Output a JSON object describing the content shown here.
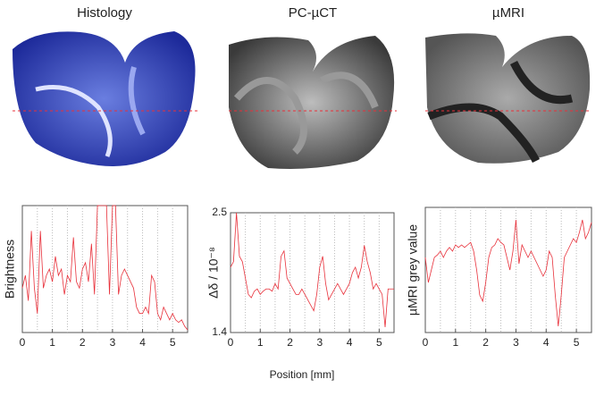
{
  "xlabel": "Position [mm]",
  "chart_data": [
    {
      "type": "line",
      "title": "Histology",
      "ylabel": "Brightness",
      "color": "#e8303a",
      "xlim": [
        0,
        5.5
      ],
      "xticks": [
        0,
        1,
        2,
        3,
        4,
        5
      ],
      "xgrid": [
        0.5,
        1,
        1.5,
        2,
        2.5,
        3,
        3.5,
        4,
        4.5,
        5
      ],
      "ylim": [
        0,
        1
      ],
      "x": [
        0,
        0.1,
        0.2,
        0.3,
        0.4,
        0.5,
        0.6,
        0.7,
        0.8,
        0.9,
        1,
        1.1,
        1.2,
        1.3,
        1.4,
        1.5,
        1.6,
        1.7,
        1.8,
        1.9,
        2,
        2.1,
        2.2,
        2.3,
        2.4,
        2.5,
        2.6,
        2.7,
        2.8,
        2.9,
        3,
        3.1,
        3.2,
        3.3,
        3.4,
        3.5,
        3.6,
        3.7,
        3.8,
        3.9,
        4,
        4.1,
        4.2,
        4.3,
        4.4,
        4.5,
        4.6,
        4.7,
        4.8,
        4.9,
        5,
        5.1,
        5.2,
        5.3,
        5.4,
        5.5
      ],
      "values": [
        0.35,
        0.45,
        0.25,
        0.8,
        0.35,
        0.15,
        0.8,
        0.35,
        0.45,
        0.5,
        0.4,
        0.6,
        0.45,
        0.5,
        0.3,
        0.45,
        0.4,
        0.75,
        0.4,
        0.35,
        0.5,
        0.55,
        0.4,
        0.7,
        0.3,
        1,
        1,
        1,
        1,
        0.3,
        1,
        1,
        0.3,
        0.45,
        0.5,
        0.45,
        0.4,
        0.35,
        0.2,
        0.15,
        0.15,
        0.2,
        0.15,
        0.45,
        0.4,
        0.15,
        0.1,
        0.2,
        0.15,
        0.1,
        0.15,
        0.1,
        0.08,
        0.1,
        0.05,
        0.02
      ]
    },
    {
      "type": "line",
      "title": "PC-µCT",
      "ylabel": "Δδ / 10⁻⁸",
      "color": "#e8303a",
      "xlim": [
        0,
        5.5
      ],
      "xticks": [
        0,
        1,
        2,
        3,
        4,
        5
      ],
      "xgrid": [
        0.5,
        1,
        1.5,
        2,
        2.5,
        3,
        3.5,
        4,
        4.5,
        5
      ],
      "ylim": [
        1.4,
        2.5
      ],
      "yticks": [
        1.4,
        2.5
      ],
      "x": [
        0,
        0.1,
        0.2,
        0.3,
        0.4,
        0.5,
        0.6,
        0.7,
        0.8,
        0.9,
        1,
        1.1,
        1.2,
        1.3,
        1.4,
        1.5,
        1.6,
        1.7,
        1.8,
        1.9,
        2,
        2.1,
        2.2,
        2.3,
        2.4,
        2.5,
        2.6,
        2.7,
        2.8,
        2.9,
        3,
        3.1,
        3.2,
        3.3,
        3.4,
        3.5,
        3.6,
        3.7,
        3.8,
        3.9,
        4,
        4.1,
        4.2,
        4.3,
        4.4,
        4.5,
        4.6,
        4.7,
        4.8,
        4.9,
        5,
        5.1,
        5.2,
        5.3,
        5.4,
        5.5
      ],
      "values": [
        2.0,
        2.05,
        2.5,
        2.1,
        2.05,
        1.9,
        1.75,
        1.72,
        1.78,
        1.8,
        1.75,
        1.78,
        1.8,
        1.8,
        1.78,
        1.85,
        1.8,
        2.1,
        2.15,
        1.9,
        1.85,
        1.8,
        1.75,
        1.75,
        1.8,
        1.75,
        1.7,
        1.65,
        1.6,
        1.75,
        2.0,
        2.1,
        1.85,
        1.7,
        1.75,
        1.8,
        1.85,
        1.8,
        1.75,
        1.8,
        1.85,
        1.95,
        2.0,
        1.9,
        2.0,
        2.2,
        2.05,
        1.95,
        1.8,
        1.85,
        1.8,
        1.75,
        1.45,
        1.8,
        1.8,
        1.8
      ]
    },
    {
      "type": "line",
      "title": "µMRI",
      "ylabel": "µMRI grey value",
      "color": "#e8303a",
      "xlim": [
        0,
        5.5
      ],
      "xticks": [
        0,
        1,
        2,
        3,
        4,
        5
      ],
      "xgrid": [
        0.5,
        1,
        1.5,
        2,
        2.5,
        3,
        3.5,
        4,
        4.5,
        5
      ],
      "ylim": [
        0,
        1
      ],
      "x": [
        0,
        0.1,
        0.2,
        0.3,
        0.4,
        0.5,
        0.6,
        0.7,
        0.8,
        0.9,
        1,
        1.1,
        1.2,
        1.3,
        1.4,
        1.5,
        1.6,
        1.7,
        1.8,
        1.9,
        2,
        2.1,
        2.2,
        2.3,
        2.4,
        2.5,
        2.6,
        2.7,
        2.8,
        2.9,
        3,
        3.1,
        3.2,
        3.3,
        3.4,
        3.5,
        3.6,
        3.7,
        3.8,
        3.9,
        4,
        4.1,
        4.2,
        4.3,
        4.4,
        4.5,
        4.6,
        4.7,
        4.8,
        4.9,
        5,
        5.1,
        5.2,
        5.3,
        5.4,
        5.5
      ],
      "values": [
        0.6,
        0.4,
        0.5,
        0.6,
        0.62,
        0.65,
        0.6,
        0.65,
        0.68,
        0.65,
        0.7,
        0.68,
        0.7,
        0.68,
        0.7,
        0.72,
        0.65,
        0.5,
        0.3,
        0.25,
        0.4,
        0.6,
        0.68,
        0.7,
        0.75,
        0.72,
        0.7,
        0.6,
        0.5,
        0.65,
        0.9,
        0.55,
        0.7,
        0.65,
        0.6,
        0.65,
        0.6,
        0.55,
        0.5,
        0.45,
        0.5,
        0.65,
        0.6,
        0.3,
        0.05,
        0.3,
        0.6,
        0.65,
        0.7,
        0.75,
        0.72,
        0.8,
        0.9,
        0.75,
        0.8,
        0.88
      ]
    }
  ]
}
